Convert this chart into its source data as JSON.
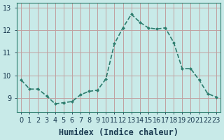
{
  "x": [
    0,
    1,
    2,
    3,
    4,
    5,
    6,
    7,
    8,
    9,
    10,
    11,
    12,
    13,
    14,
    15,
    16,
    17,
    18,
    19,
    20,
    21,
    22,
    23
  ],
  "y": [
    9.8,
    9.4,
    9.4,
    9.1,
    8.75,
    8.8,
    8.85,
    9.15,
    9.3,
    9.35,
    9.85,
    11.4,
    12.1,
    12.7,
    12.35,
    12.1,
    12.05,
    12.1,
    11.45,
    10.3,
    10.3,
    9.8,
    9.2,
    9.05
  ],
  "line_color": "#2e7d6e",
  "marker": "D",
  "marker_size": 2.5,
  "background_color": "#c8eae8",
  "grid_color": "#c0a0a0",
  "xlabel": "Humidex (Indice chaleur)",
  "xlabel_fontsize": 8.5,
  "ylim": [
    8.4,
    13.2
  ],
  "xlim": [
    -0.5,
    23.5
  ],
  "yticks": [
    9,
    10,
    11,
    12,
    13
  ],
  "xticks": [
    0,
    1,
    2,
    3,
    4,
    5,
    6,
    7,
    8,
    9,
    10,
    11,
    12,
    13,
    14,
    15,
    16,
    17,
    18,
    19,
    20,
    21,
    22,
    23
  ],
  "tick_fontsize": 7,
  "line_width": 1.2
}
